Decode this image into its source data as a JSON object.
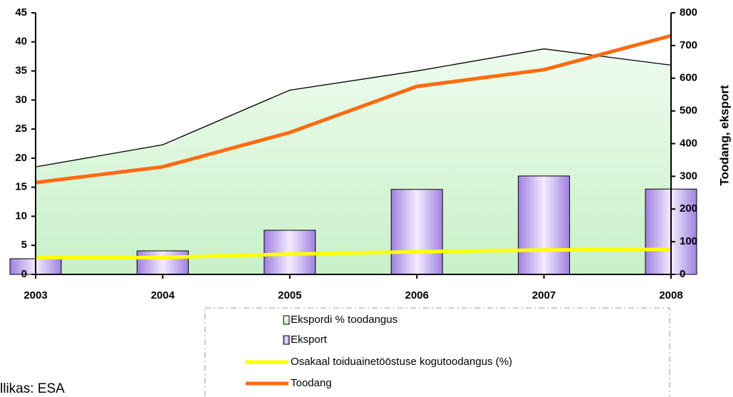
{
  "chart_data": {
    "type": "combo",
    "categories": [
      "2003",
      "2004",
      "2005",
      "2006",
      "2007",
      "2008"
    ],
    "series": [
      {
        "name": "Ekspordi % toodangus",
        "type": "area",
        "axis": "y",
        "color": "#d8f5d8",
        "values": [
          18.5,
          22.3,
          31.7,
          35,
          38.8,
          36
        ]
      },
      {
        "name": "Eksport",
        "type": "bar",
        "axis": "y2",
        "color": "#c9b3f0",
        "values": [
          48,
          72,
          135,
          260,
          301,
          261
        ]
      },
      {
        "name": "Osakaal toiduainetööstuse kogutoodangus (%)",
        "type": "line",
        "axis": "y",
        "color": "#ffff00",
        "values": [
          2.9,
          2.9,
          3.5,
          3.9,
          4.2,
          4.3
        ]
      },
      {
        "name": "Toodang",
        "type": "line",
        "axis": "y2",
        "color": "#ff6a10",
        "values": [
          281,
          329,
          434,
          575,
          626,
          730
        ]
      }
    ],
    "ylim": [
      0,
      45
    ],
    "yticks": [
      0,
      5,
      10,
      15,
      20,
      25,
      30,
      35,
      40,
      45
    ],
    "y2lim": [
      0,
      800
    ],
    "y2ticks": [
      0,
      100,
      200,
      300,
      400,
      500,
      600,
      700,
      800
    ],
    "y2label": "Toodang, eksport",
    "source": "llikas: ESA"
  }
}
